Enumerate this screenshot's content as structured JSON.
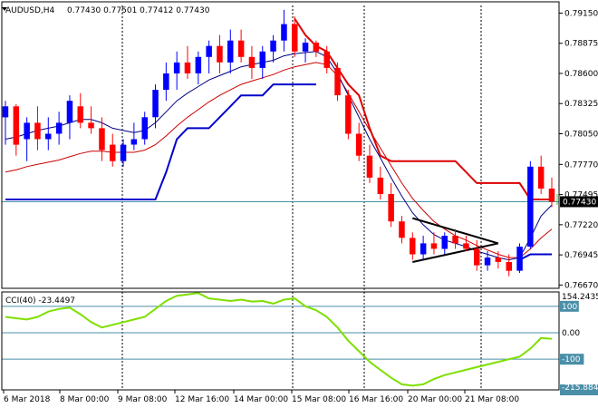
{
  "header": {
    "symbol": "AUDUSD,H4",
    "ohlc": "0.77430 0.77501 0.77412 0.77430"
  },
  "cci_header": "CCI(40) -23.4497",
  "chart_data": {
    "type": "candlestick",
    "symbol": "AUDUSD",
    "timeframe": "H4",
    "price_ticks": [
      "0.79150",
      "0.78875",
      "0.78600",
      "0.78325",
      "0.78050",
      "0.77770",
      "0.77495",
      "0.77220",
      "0.76945",
      "0.76670"
    ],
    "price_range": [
      0.7664,
      0.7922
    ],
    "current_price": "0.77430",
    "x_labels": [
      "6 Mar 2018",
      "8 Mar 00:00",
      "9 Mar 08:00",
      "12 Mar 16:00",
      "14 Mar 00:00",
      "15 Mar 08:00",
      "16 Mar 16:00",
      "20 Mar 00:00",
      "21 Mar 08:00"
    ],
    "bullish_color": "#0000ff",
    "bearish_color": "#ff0000",
    "candles": [
      [
        0.782,
        0.7835,
        0.7795,
        0.783
      ],
      [
        0.783,
        0.7832,
        0.7785,
        0.7795
      ],
      [
        0.78,
        0.782,
        0.778,
        0.7815
      ],
      [
        0.7815,
        0.783,
        0.779,
        0.78
      ],
      [
        0.78,
        0.782,
        0.779,
        0.7805
      ],
      [
        0.7805,
        0.7825,
        0.7795,
        0.7815
      ],
      [
        0.7815,
        0.784,
        0.78,
        0.7835
      ],
      [
        0.783,
        0.7842,
        0.781,
        0.7815
      ],
      [
        0.7815,
        0.783,
        0.7805,
        0.781
      ],
      [
        0.781,
        0.782,
        0.778,
        0.779
      ],
      [
        0.7795,
        0.7805,
        0.7775,
        0.778
      ],
      [
        0.778,
        0.78,
        0.7775,
        0.7795
      ],
      [
        0.7795,
        0.7815,
        0.779,
        0.78
      ],
      [
        0.78,
        0.7825,
        0.7795,
        0.782
      ],
      [
        0.782,
        0.785,
        0.781,
        0.7845
      ],
      [
        0.7845,
        0.787,
        0.7835,
        0.786
      ],
      [
        0.786,
        0.788,
        0.7845,
        0.787
      ],
      [
        0.787,
        0.7885,
        0.7855,
        0.786
      ],
      [
        0.786,
        0.788,
        0.785,
        0.7875
      ],
      [
        0.7875,
        0.789,
        0.786,
        0.7885
      ],
      [
        0.7885,
        0.7895,
        0.786,
        0.787
      ],
      [
        0.787,
        0.79,
        0.786,
        0.789
      ],
      [
        0.789,
        0.79,
        0.787,
        0.7875
      ],
      [
        0.7875,
        0.7885,
        0.7855,
        0.7865
      ],
      [
        0.7865,
        0.7885,
        0.7855,
        0.788
      ],
      [
        0.788,
        0.7895,
        0.787,
        0.789
      ],
      [
        0.789,
        0.7918,
        0.788,
        0.7905
      ],
      [
        0.7905,
        0.7912,
        0.7875,
        0.788
      ],
      [
        0.788,
        0.7892,
        0.787,
        0.7888
      ],
      [
        0.7888,
        0.789,
        0.7875,
        0.788
      ],
      [
        0.788,
        0.7885,
        0.786,
        0.7865
      ],
      [
        0.7865,
        0.787,
        0.7835,
        0.784
      ],
      [
        0.784,
        0.7845,
        0.78,
        0.7805
      ],
      [
        0.7805,
        0.7815,
        0.778,
        0.7785
      ],
      [
        0.7785,
        0.7795,
        0.776,
        0.7765
      ],
      [
        0.7765,
        0.7775,
        0.7745,
        0.775
      ],
      [
        0.775,
        0.776,
        0.772,
        0.7725
      ],
      [
        0.7725,
        0.773,
        0.7705,
        0.771
      ],
      [
        0.771,
        0.7715,
        0.769,
        0.7695
      ],
      [
        0.7695,
        0.7712,
        0.769,
        0.7705
      ],
      [
        0.7705,
        0.7715,
        0.7695,
        0.77
      ],
      [
        0.77,
        0.7715,
        0.7695,
        0.7712
      ],
      [
        0.7712,
        0.7718,
        0.77,
        0.7705
      ],
      [
        0.7705,
        0.7712,
        0.7698,
        0.77
      ],
      [
        0.77,
        0.7708,
        0.768,
        0.7685
      ],
      [
        0.7685,
        0.7698,
        0.768,
        0.7692
      ],
      [
        0.7692,
        0.7698,
        0.7682,
        0.7688
      ],
      [
        0.7688,
        0.7695,
        0.7675,
        0.768
      ],
      [
        0.768,
        0.7705,
        0.7678,
        0.7702
      ],
      [
        0.7702,
        0.778,
        0.77,
        0.7775
      ],
      [
        0.7775,
        0.7785,
        0.775,
        0.7755
      ],
      [
        0.7755,
        0.7765,
        0.7738,
        0.7743
      ]
    ],
    "ma_fast": [
      0.78,
      0.7802,
      0.7805,
      0.7808,
      0.781,
      0.7812,
      0.7815,
      0.7818,
      0.7818,
      0.7815,
      0.781,
      0.7808,
      0.7806,
      0.7808,
      0.7815,
      0.7825,
      0.7835,
      0.7842,
      0.7848,
      0.7854,
      0.7858,
      0.7862,
      0.7866,
      0.7868,
      0.787,
      0.7872,
      0.7876,
      0.7878,
      0.7879,
      0.788,
      0.7875,
      0.786,
      0.784,
      0.782,
      0.78,
      0.7783,
      0.7765,
      0.7748,
      0.7733,
      0.7722,
      0.7713,
      0.7708,
      0.7705,
      0.7702,
      0.7698,
      0.7695,
      0.7692,
      0.769,
      0.7692,
      0.771,
      0.773,
      0.774
    ],
    "ma_slow": [
      0.777,
      0.7772,
      0.7775,
      0.7777,
      0.7779,
      0.7781,
      0.7784,
      0.7787,
      0.7789,
      0.7789,
      0.7788,
      0.7788,
      0.7788,
      0.779,
      0.7795,
      0.7803,
      0.7812,
      0.782,
      0.7827,
      0.7834,
      0.784,
      0.7845,
      0.785,
      0.7853,
      0.7856,
      0.7859,
      0.7863,
      0.7866,
      0.7868,
      0.787,
      0.7868,
      0.7858,
      0.7842,
      0.7825,
      0.7808,
      0.7792,
      0.7776,
      0.776,
      0.7746,
      0.7735,
      0.7725,
      0.7718,
      0.7712,
      0.7708,
      0.7703,
      0.7699,
      0.7695,
      0.7692,
      0.7692,
      0.77,
      0.771,
      0.7718
    ],
    "trail_blue": [
      0.7745,
      0.7745,
      0.7745,
      0.7745,
      0.7745,
      0.7745,
      0.7745,
      0.7745,
      0.7745,
      0.7745,
      0.7745,
      0.7745,
      0.7745,
      0.7745,
      0.7745,
      0.777,
      0.78,
      0.781,
      0.781,
      0.781,
      0.782,
      0.783,
      0.784,
      0.784,
      0.784,
      0.785,
      0.785,
      0.785,
      0.785,
      0.785,
      null,
      null,
      null,
      null,
      null,
      null,
      null,
      null,
      null,
      null,
      null,
      null,
      null,
      null,
      null,
      null,
      null,
      null,
      0.769,
      0.7695,
      0.7695,
      0.7695
    ],
    "trail_red": [
      null,
      null,
      null,
      null,
      null,
      null,
      null,
      null,
      null,
      null,
      null,
      null,
      null,
      null,
      null,
      null,
      null,
      null,
      null,
      null,
      null,
      null,
      null,
      null,
      null,
      null,
      null,
      0.791,
      0.7895,
      0.7885,
      0.788,
      0.7865,
      0.785,
      0.784,
      0.781,
      0.7785,
      0.778,
      0.778,
      0.778,
      0.778,
      0.778,
      0.778,
      0.778,
      0.777,
      0.776,
      0.776,
      0.776,
      0.776,
      0.776,
      0.7745,
      0.7745,
      0.7745
    ],
    "pattern_lines": [
      [
        38,
        0.7688,
        46,
        0.7705
      ],
      [
        38,
        0.7728,
        46,
        0.7705
      ]
    ],
    "cci": {
      "name": "CCI(40)",
      "last": -23.4497,
      "range": [
        -215.884,
        154.2435
      ],
      "levels": [
        100,
        0,
        -100
      ],
      "level_labels": [
        "154.2435",
        "100",
        "0.00",
        "-100",
        "-215.884"
      ],
      "values": [
        60,
        55,
        50,
        60,
        80,
        90,
        95,
        70,
        40,
        20,
        30,
        40,
        50,
        60,
        90,
        120,
        140,
        145,
        150,
        130,
        125,
        120,
        125,
        118,
        120,
        110,
        125,
        130,
        100,
        85,
        60,
        20,
        -30,
        -70,
        -110,
        -140,
        -170,
        -195,
        -200,
        -195,
        -175,
        -160,
        -150,
        -140,
        -130,
        -120,
        -110,
        -100,
        -90,
        -60,
        -20,
        -23
      ]
    },
    "colors": {
      "ma_fast": "#000080",
      "ma_slow": "#cc0000",
      "trail_blue": "#0000cc",
      "trail_red": "#dd0000",
      "cci": "#7ee000",
      "current_price_line": "#4a8fa8"
    }
  }
}
